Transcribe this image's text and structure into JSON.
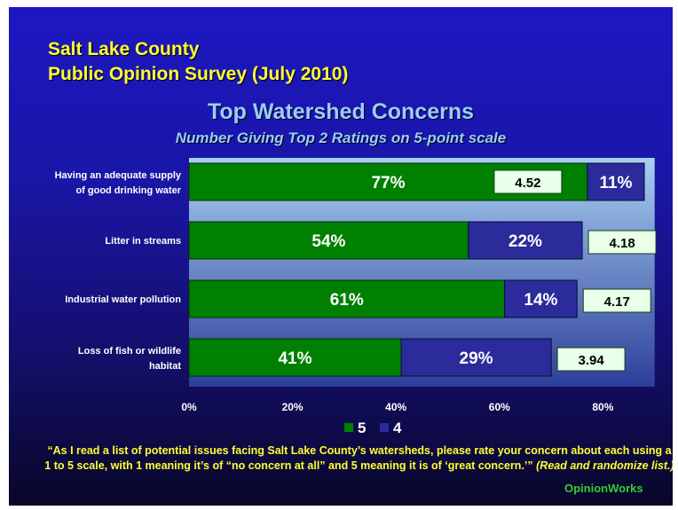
{
  "header": {
    "line1": "Salt Lake County",
    "line2": "Public Opinion Survey (July 2010)"
  },
  "footnote": {
    "quote": "“As I read a list of potential issues facing Salt Lake County’s watersheds, please rate your concern about each using a 1 to 5 scale, with 1 meaning it’s of “no concern at all” and 5 meaning it is of ‘great concern.’”",
    "instruction": "(Read and randomize list.)"
  },
  "brand": "OpinionWorks",
  "colors": {
    "series_5": "#008000",
    "series_4": "#2b2b9b",
    "plot_area_top": "#a8cff0",
    "plot_area_bottom": "#2c3f9a",
    "mean_box_fill": "#e8ffe8",
    "header_text": "#ffff33",
    "title_text": "#99ccff"
  },
  "chart_data": {
    "type": "bar",
    "orientation": "horizontal",
    "stacked": true,
    "title": "Top Watershed Concerns",
    "subtitle": "Number Giving Top 2 Ratings on 5-point scale",
    "categories": [
      [
        "Having an adequate supply",
        "of good drinking water"
      ],
      [
        "Litter in streams"
      ],
      [
        "Industrial water pollution"
      ],
      [
        "Loss of fish or wildlife",
        "habitat"
      ]
    ],
    "series": [
      {
        "name": "5",
        "values": [
          77,
          54,
          61,
          41
        ],
        "labels": [
          "77%",
          "54%",
          "61%",
          "41%"
        ]
      },
      {
        "name": "4",
        "values": [
          11,
          22,
          14,
          29
        ],
        "labels": [
          "11%",
          "22%",
          "14%",
          "29%"
        ]
      }
    ],
    "mean_scores": [
      "4.52",
      "4.18",
      "4.17",
      "3.94"
    ],
    "xlim": [
      0,
      90
    ],
    "xticks": [
      0,
      20,
      40,
      60,
      80
    ],
    "xtick_labels": [
      "0%",
      "20%",
      "40%",
      "60%",
      "80%"
    ],
    "legend": {
      "position": "bottom-center",
      "entries": [
        "5",
        "4"
      ]
    },
    "grid": false
  }
}
